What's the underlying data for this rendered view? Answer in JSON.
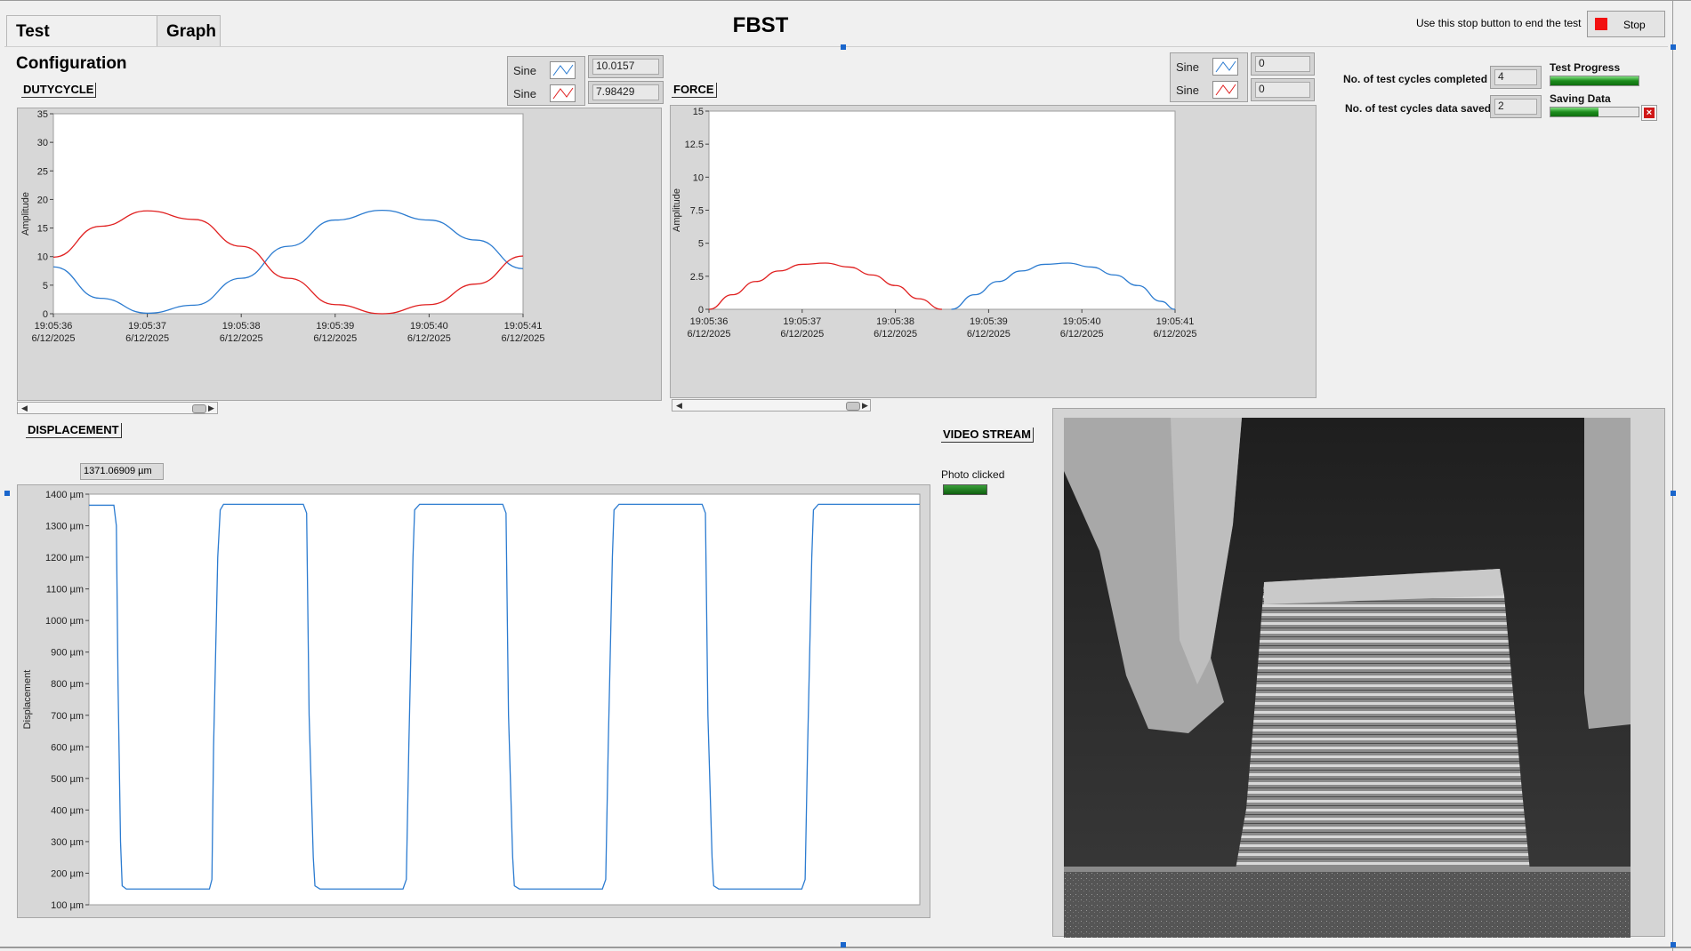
{
  "window": {
    "title": "FBST"
  },
  "tabs": [
    {
      "label": "Test Configuration"
    },
    {
      "label": "Graph"
    }
  ],
  "stop": {
    "hint": "Use this stop button to end the test",
    "label": "Stop"
  },
  "status": {
    "cycles_completed_label": "No. of test cycles completed",
    "cycles_completed_value": "4",
    "cycles_saved_label": "No. of test cycles data saved",
    "cycles_saved_value": "2",
    "test_progress_label": "Test Progress",
    "test_progress_fraction": 1.0,
    "saving_label": "Saving Data",
    "saving_fraction": 0.55
  },
  "dutycycle": {
    "label": "DUTYCYCLE",
    "legend": [
      {
        "name": "Sine",
        "value": "10.0157",
        "color": "#2b7bd0"
      },
      {
        "name": "Sine",
        "value": "7.98429",
        "color": "#e02020"
      }
    ]
  },
  "force": {
    "label": "FORCE",
    "legend": [
      {
        "name": "Sine",
        "value": "0",
        "color": "#2b7bd0"
      },
      {
        "name": "Sine",
        "value": "0",
        "color": "#e02020"
      }
    ]
  },
  "displacement": {
    "label": "DISPLACEMENT",
    "cursor_value": "1371.06909 µm"
  },
  "video": {
    "label": "VIDEO STREAM",
    "photo_label": "Photo clicked"
  },
  "chart_data": [
    {
      "type": "line",
      "name": "dutycycle",
      "ylabel": "Amplitude",
      "ylim": [
        0,
        35
      ],
      "yticks": [
        "0",
        "5",
        "10",
        "15",
        "20",
        "25",
        "30",
        "35"
      ],
      "xticks": [
        {
          "time": "19:05:36",
          "date": "6/12/2025"
        },
        {
          "time": "19:05:37",
          "date": "6/12/2025"
        },
        {
          "time": "19:05:38",
          "date": "6/12/2025"
        },
        {
          "time": "19:05:39",
          "date": "6/12/2025"
        },
        {
          "time": "19:05:40",
          "date": "6/12/2025"
        },
        {
          "time": "19:05:41",
          "date": "6/12/2025"
        }
      ],
      "xlim": [
        0,
        5
      ],
      "series": [
        {
          "color": "#2b7bd0",
          "x": [
            0,
            0.5,
            1.0,
            1.5,
            2.0,
            2.5,
            3.0,
            3.5,
            4.0,
            4.5,
            5.0
          ],
          "y": [
            8.2,
            2.7,
            0.1,
            1.5,
            6.2,
            11.8,
            16.4,
            18.1,
            16.4,
            12.9,
            7.9
          ]
        },
        {
          "color": "#e02020",
          "x": [
            0,
            0.5,
            1.0,
            1.5,
            2.0,
            2.5,
            3.0,
            3.5,
            4.0,
            4.5,
            5.0
          ],
          "y": [
            9.9,
            15.3,
            18.0,
            16.5,
            11.8,
            6.2,
            1.6,
            0.0,
            1.6,
            5.2,
            10.1
          ]
        }
      ]
    },
    {
      "type": "line",
      "name": "force",
      "ylabel": "Amplitude",
      "ylim": [
        0,
        15
      ],
      "yticks": [
        "0",
        "2.5",
        "5",
        "7.5",
        "10",
        "12.5",
        "15"
      ],
      "xticks": [
        {
          "time": "19:05:36",
          "date": "6/12/2025"
        },
        {
          "time": "19:05:37",
          "date": "6/12/2025"
        },
        {
          "time": "19:05:38",
          "date": "6/12/2025"
        },
        {
          "time": "19:05:39",
          "date": "6/12/2025"
        },
        {
          "time": "19:05:40",
          "date": "6/12/2025"
        },
        {
          "time": "19:05:41",
          "date": "6/12/2025"
        }
      ],
      "xlim": [
        0,
        5
      ],
      "series": [
        {
          "color": "#e02020",
          "x": [
            0,
            0.25,
            0.5,
            0.75,
            1.0,
            1.25,
            1.5,
            1.75,
            2.0,
            2.25,
            2.5
          ],
          "y": [
            0,
            1.1,
            2.1,
            2.9,
            3.4,
            3.5,
            3.2,
            2.6,
            1.8,
            0.8,
            0
          ]
        },
        {
          "color": "#2b7bd0",
          "x": [
            2.6,
            2.85,
            3.1,
            3.35,
            3.6,
            3.85,
            4.1,
            4.35,
            4.6,
            4.85,
            5.0
          ],
          "y": [
            0,
            1.1,
            2.1,
            2.9,
            3.4,
            3.5,
            3.2,
            2.6,
            1.8,
            0.6,
            0
          ]
        }
      ]
    },
    {
      "type": "line",
      "name": "displacement",
      "ylabel": "Displacement",
      "ylim": [
        100,
        1400
      ],
      "yticks": [
        "100 µm",
        "200 µm",
        "300 µm",
        "400 µm",
        "500 µm",
        "600 µm",
        "700 µm",
        "800 µm",
        "900 µm",
        "1000 µm",
        "1100 µm",
        "1200 µm",
        "1300 µm",
        "1400 µm"
      ],
      "series": [
        {
          "color": "#2b7bd0",
          "x": [
            0,
            30,
            33,
            35,
            38,
            40,
            45,
            145,
            148,
            150,
            155,
            158,
            162,
            258,
            262,
            265,
            270,
            272,
            278,
            378,
            382,
            385,
            390,
            392,
            398,
            498,
            502,
            505,
            510,
            512,
            518,
            618,
            622,
            625,
            630,
            632,
            638,
            738,
            742,
            745,
            750,
            752,
            758,
            858,
            862,
            865,
            870,
            872,
            878,
            978,
            982,
            985,
            990,
            992,
            998,
            1000
          ],
          "y": [
            1365,
            1365,
            1300,
            800,
            300,
            160,
            150,
            150,
            180,
            600,
            1200,
            1350,
            1368,
            1368,
            1340,
            700,
            250,
            160,
            150,
            150,
            180,
            600,
            1200,
            1350,
            1368,
            1368,
            1340,
            700,
            250,
            160,
            150,
            150,
            180,
            600,
            1200,
            1350,
            1368,
            1368,
            1340,
            700,
            250,
            160,
            150,
            150,
            180,
            600,
            1200,
            1350,
            1368,
            1368,
            1368,
            1368,
            1368,
            1368,
            1368,
            1368
          ]
        }
      ]
    }
  ]
}
